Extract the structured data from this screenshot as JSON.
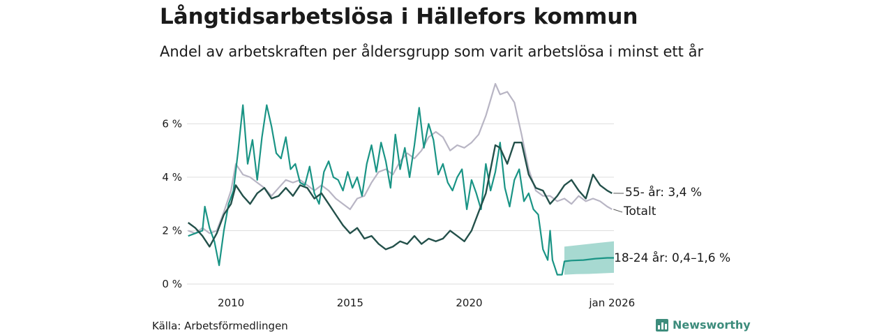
{
  "title": "Långtidsarbetslösa i Hällefors kommun",
  "subtitle": "Andel av arbetskraften per åldersgrupp som varit arbetslösa i minst ett år",
  "source": "Källa: Arbetsförmedlingen",
  "brand": "Newsworthy",
  "colors": {
    "total": "#b8b5c4",
    "age55": "#23504a",
    "age1824": "#1a9485",
    "band": "#a7d9d1",
    "grid": "#dddddd"
  },
  "chart_data": {
    "type": "line",
    "title": "Långtidsarbetslösa i Hällefors kommun",
    "ylabel": "",
    "xlabel": "",
    "ylim": [
      0,
      7.5
    ],
    "xlim": [
      2008.15,
      2026.08
    ],
    "y_ticks": [
      {
        "value": 0,
        "label": "0 %"
      },
      {
        "value": 2,
        "label": "2 %"
      },
      {
        "value": 4,
        "label": "4 %"
      },
      {
        "value": 6,
        "label": "6 %"
      }
    ],
    "x_ticks": [
      {
        "value": 2010,
        "label": "2010"
      },
      {
        "value": 2015,
        "label": "2015"
      },
      {
        "value": 2020,
        "label": "2020"
      },
      {
        "value": 2026.0,
        "label": "jan 2026"
      }
    ],
    "series": [
      {
        "name": "Totalt",
        "end_label": "Totalt",
        "points": [
          [
            2008.2,
            2.0
          ],
          [
            2008.5,
            1.9
          ],
          [
            2008.8,
            2.1
          ],
          [
            2009.1,
            1.9
          ],
          [
            2009.4,
            2.0
          ],
          [
            2009.7,
            2.7
          ],
          [
            2010.0,
            3.5
          ],
          [
            2010.2,
            4.5
          ],
          [
            2010.5,
            4.1
          ],
          [
            2010.8,
            4.0
          ],
          [
            2011.1,
            3.8
          ],
          [
            2011.4,
            3.6
          ],
          [
            2011.7,
            3.3
          ],
          [
            2012.0,
            3.6
          ],
          [
            2012.3,
            3.9
          ],
          [
            2012.6,
            3.8
          ],
          [
            2012.9,
            3.9
          ],
          [
            2013.2,
            3.7
          ],
          [
            2013.5,
            3.5
          ],
          [
            2013.8,
            3.7
          ],
          [
            2014.1,
            3.5
          ],
          [
            2014.4,
            3.2
          ],
          [
            2014.7,
            3.0
          ],
          [
            2015.0,
            2.8
          ],
          [
            2015.3,
            3.2
          ],
          [
            2015.6,
            3.3
          ],
          [
            2015.9,
            3.8
          ],
          [
            2016.2,
            4.2
          ],
          [
            2016.5,
            4.3
          ],
          [
            2016.8,
            4.1
          ],
          [
            2017.1,
            4.6
          ],
          [
            2017.4,
            4.9
          ],
          [
            2017.7,
            4.7
          ],
          [
            2018.0,
            5.0
          ],
          [
            2018.3,
            5.5
          ],
          [
            2018.6,
            5.7
          ],
          [
            2018.9,
            5.5
          ],
          [
            2019.2,
            5.0
          ],
          [
            2019.5,
            5.2
          ],
          [
            2019.8,
            5.1
          ],
          [
            2020.1,
            5.3
          ],
          [
            2020.4,
            5.6
          ],
          [
            2020.7,
            6.3
          ],
          [
            2020.9,
            6.9
          ],
          [
            2021.1,
            7.5
          ],
          [
            2021.3,
            7.1
          ],
          [
            2021.6,
            7.2
          ],
          [
            2021.9,
            6.8
          ],
          [
            2022.2,
            5.6
          ],
          [
            2022.5,
            4.3
          ],
          [
            2022.8,
            3.5
          ],
          [
            2023.1,
            3.3
          ],
          [
            2023.4,
            3.3
          ],
          [
            2023.7,
            3.1
          ],
          [
            2024.0,
            3.2
          ],
          [
            2024.3,
            3.0
          ],
          [
            2024.6,
            3.3
          ],
          [
            2024.9,
            3.1
          ],
          [
            2025.2,
            3.2
          ],
          [
            2025.5,
            3.1
          ],
          [
            2025.8,
            2.9
          ],
          [
            2026.0,
            2.8
          ]
        ]
      },
      {
        "name": "55- år",
        "end_label": "55- år: 3,4 %",
        "points": [
          [
            2008.2,
            2.3
          ],
          [
            2008.5,
            2.1
          ],
          [
            2008.8,
            1.8
          ],
          [
            2009.1,
            1.4
          ],
          [
            2009.4,
            1.9
          ],
          [
            2009.7,
            2.6
          ],
          [
            2010.0,
            3.0
          ],
          [
            2010.2,
            3.7
          ],
          [
            2010.5,
            3.3
          ],
          [
            2010.8,
            3.0
          ],
          [
            2011.1,
            3.4
          ],
          [
            2011.4,
            3.6
          ],
          [
            2011.7,
            3.2
          ],
          [
            2012.0,
            3.3
          ],
          [
            2012.3,
            3.6
          ],
          [
            2012.6,
            3.3
          ],
          [
            2012.9,
            3.7
          ],
          [
            2013.2,
            3.6
          ],
          [
            2013.5,
            3.2
          ],
          [
            2013.8,
            3.4
          ],
          [
            2014.1,
            3.0
          ],
          [
            2014.4,
            2.6
          ],
          [
            2014.7,
            2.2
          ],
          [
            2015.0,
            1.9
          ],
          [
            2015.3,
            2.1
          ],
          [
            2015.6,
            1.7
          ],
          [
            2015.9,
            1.8
          ],
          [
            2016.2,
            1.5
          ],
          [
            2016.5,
            1.3
          ],
          [
            2016.8,
            1.4
          ],
          [
            2017.1,
            1.6
          ],
          [
            2017.4,
            1.5
          ],
          [
            2017.7,
            1.8
          ],
          [
            2018.0,
            1.5
          ],
          [
            2018.3,
            1.7
          ],
          [
            2018.6,
            1.6
          ],
          [
            2018.9,
            1.7
          ],
          [
            2019.2,
            2.0
          ],
          [
            2019.5,
            1.8
          ],
          [
            2019.8,
            1.6
          ],
          [
            2020.1,
            2.0
          ],
          [
            2020.4,
            2.7
          ],
          [
            2020.7,
            3.4
          ],
          [
            2020.9,
            4.3
          ],
          [
            2021.1,
            5.2
          ],
          [
            2021.3,
            5.1
          ],
          [
            2021.6,
            4.5
          ],
          [
            2021.9,
            5.3
          ],
          [
            2022.2,
            5.3
          ],
          [
            2022.5,
            4.1
          ],
          [
            2022.8,
            3.6
          ],
          [
            2023.1,
            3.5
          ],
          [
            2023.4,
            3.0
          ],
          [
            2023.7,
            3.3
          ],
          [
            2024.0,
            3.7
          ],
          [
            2024.3,
            3.9
          ],
          [
            2024.6,
            3.5
          ],
          [
            2024.9,
            3.2
          ],
          [
            2025.2,
            4.1
          ],
          [
            2025.5,
            3.7
          ],
          [
            2025.8,
            3.5
          ],
          [
            2026.0,
            3.4
          ]
        ]
      },
      {
        "name": "18-24 år",
        "end_label": "18-24 år: 0,4–1,6 %",
        "points": [
          [
            2008.2,
            1.8
          ],
          [
            2008.5,
            1.9
          ],
          [
            2008.8,
            2.0
          ],
          [
            2008.9,
            2.9
          ],
          [
            2009.1,
            2.1
          ],
          [
            2009.3,
            1.6
          ],
          [
            2009.5,
            0.7
          ],
          [
            2009.7,
            2.0
          ],
          [
            2009.9,
            3.0
          ],
          [
            2010.1,
            3.5
          ],
          [
            2010.3,
            5.0
          ],
          [
            2010.5,
            6.7
          ],
          [
            2010.7,
            4.5
          ],
          [
            2010.9,
            5.4
          ],
          [
            2011.1,
            3.9
          ],
          [
            2011.3,
            5.5
          ],
          [
            2011.5,
            6.7
          ],
          [
            2011.7,
            5.9
          ],
          [
            2011.9,
            4.9
          ],
          [
            2012.1,
            4.7
          ],
          [
            2012.3,
            5.5
          ],
          [
            2012.5,
            4.3
          ],
          [
            2012.7,
            4.5
          ],
          [
            2012.9,
            3.8
          ],
          [
            2013.1,
            3.7
          ],
          [
            2013.3,
            4.4
          ],
          [
            2013.5,
            3.4
          ],
          [
            2013.7,
            3.0
          ],
          [
            2013.9,
            4.2
          ],
          [
            2014.1,
            4.6
          ],
          [
            2014.3,
            4.0
          ],
          [
            2014.5,
            3.9
          ],
          [
            2014.7,
            3.5
          ],
          [
            2014.9,
            4.2
          ],
          [
            2015.1,
            3.6
          ],
          [
            2015.3,
            4.0
          ],
          [
            2015.5,
            3.3
          ],
          [
            2015.7,
            4.5
          ],
          [
            2015.9,
            5.2
          ],
          [
            2016.1,
            4.2
          ],
          [
            2016.3,
            5.3
          ],
          [
            2016.5,
            4.6
          ],
          [
            2016.7,
            3.6
          ],
          [
            2016.9,
            5.6
          ],
          [
            2017.1,
            4.3
          ],
          [
            2017.3,
            5.1
          ],
          [
            2017.5,
            4.0
          ],
          [
            2017.7,
            5.2
          ],
          [
            2017.9,
            6.6
          ],
          [
            2018.1,
            5.1
          ],
          [
            2018.3,
            6.0
          ],
          [
            2018.5,
            5.4
          ],
          [
            2018.7,
            4.1
          ],
          [
            2018.9,
            4.5
          ],
          [
            2019.1,
            3.8
          ],
          [
            2019.3,
            3.5
          ],
          [
            2019.5,
            4.0
          ],
          [
            2019.7,
            4.3
          ],
          [
            2019.9,
            2.8
          ],
          [
            2020.1,
            3.9
          ],
          [
            2020.3,
            3.4
          ],
          [
            2020.5,
            2.8
          ],
          [
            2020.7,
            4.5
          ],
          [
            2020.9,
            3.5
          ],
          [
            2021.1,
            4.2
          ],
          [
            2021.3,
            5.3
          ],
          [
            2021.5,
            3.6
          ],
          [
            2021.7,
            2.9
          ],
          [
            2021.9,
            3.9
          ],
          [
            2022.1,
            4.3
          ],
          [
            2022.3,
            3.1
          ],
          [
            2022.5,
            3.4
          ],
          [
            2022.7,
            2.8
          ],
          [
            2022.9,
            2.6
          ],
          [
            2023.1,
            1.3
          ],
          [
            2023.3,
            0.9
          ],
          [
            2023.4,
            2.0
          ],
          [
            2023.5,
            0.9
          ],
          [
            2023.7,
            0.35
          ],
          [
            2023.9,
            0.35
          ],
          [
            2024.0,
            0.85
          ],
          [
            2024.3,
            0.88
          ],
          [
            2024.8,
            0.9
          ],
          [
            2025.3,
            0.95
          ],
          [
            2025.8,
            0.98
          ],
          [
            2026.08,
            0.98
          ]
        ],
        "band": [
          [
            2024.0,
            0.35,
            1.4
          ],
          [
            2024.5,
            0.37,
            1.45
          ],
          [
            2025.0,
            0.38,
            1.5
          ],
          [
            2025.5,
            0.4,
            1.55
          ],
          [
            2026.08,
            0.42,
            1.6
          ]
        ]
      }
    ]
  }
}
